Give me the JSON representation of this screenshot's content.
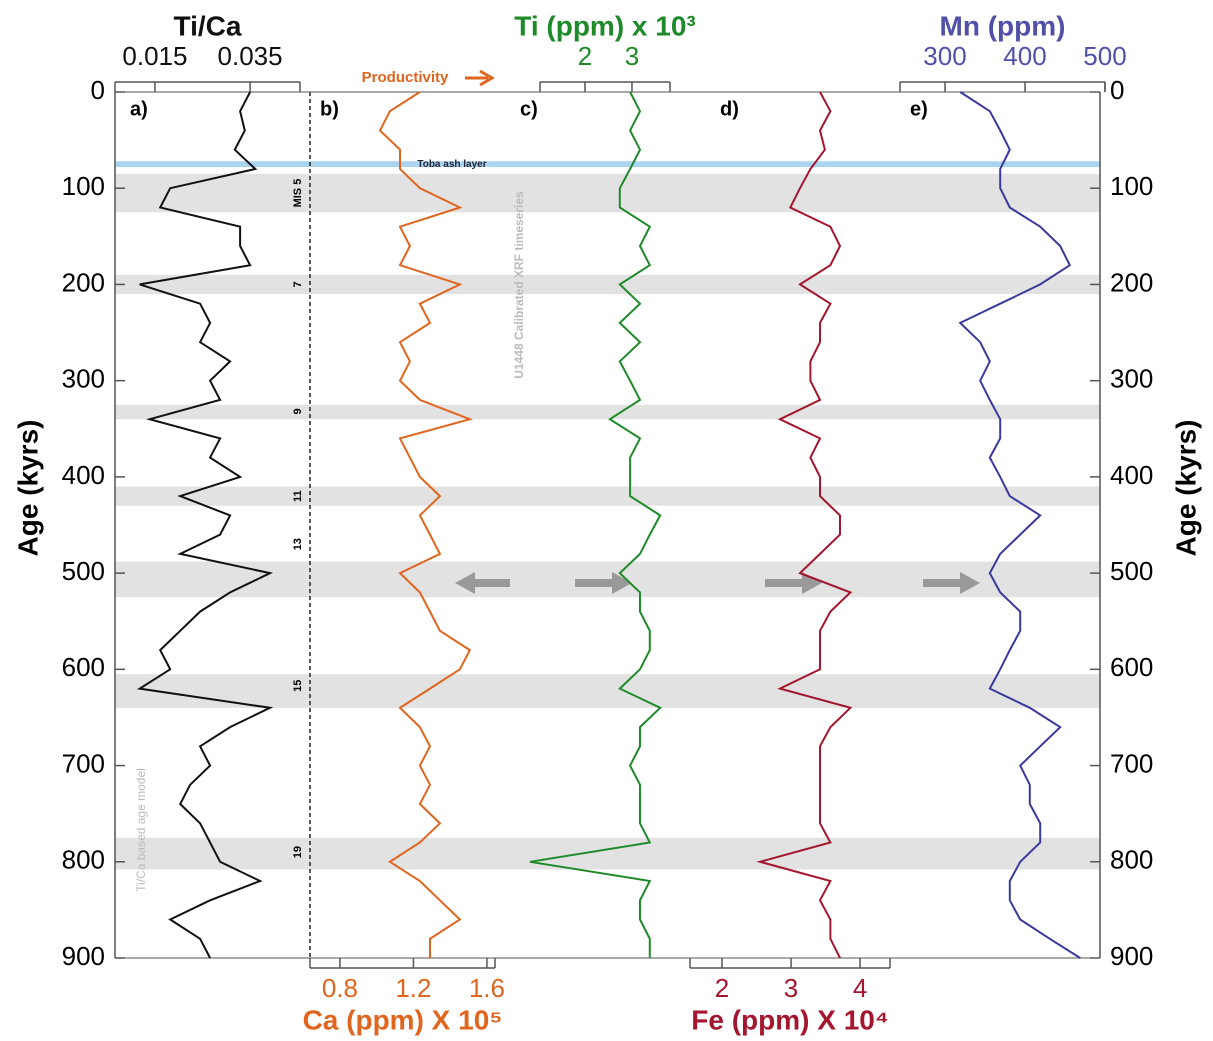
{
  "chart_data": {
    "type": "depth-profile",
    "ylabel": "Age (kyrs)",
    "ylim": [
      0,
      900
    ],
    "yticks": [
      0,
      100,
      200,
      300,
      400,
      500,
      600,
      700,
      800,
      900
    ],
    "y": [
      0,
      20,
      40,
      60,
      80,
      100,
      120,
      140,
      160,
      180,
      200,
      220,
      240,
      260,
      280,
      300,
      320,
      340,
      360,
      380,
      400,
      420,
      440,
      460,
      480,
      500,
      520,
      540,
      560,
      580,
      600,
      620,
      640,
      660,
      680,
      700,
      720,
      740,
      760,
      780,
      800,
      820,
      840,
      860,
      880,
      900
    ],
    "bands": [
      {
        "from": 85,
        "to": 125
      },
      {
        "from": 190,
        "to": 210
      },
      {
        "from": 325,
        "to": 340
      },
      {
        "from": 410,
        "to": 430
      },
      {
        "from": 488,
        "to": 525
      },
      {
        "from": 605,
        "to": 640
      },
      {
        "from": 775,
        "to": 808
      }
    ],
    "toba": {
      "label": "Toba ash layer",
      "from": 72,
      "to": 78
    },
    "mis_labels": [
      {
        "label": "MIS 5",
        "age": 105
      },
      {
        "label": "7",
        "age": 200
      },
      {
        "label": "9",
        "age": 332
      },
      {
        "label": "11",
        "age": 420
      },
      {
        "label": "13",
        "age": 470
      },
      {
        "label": "15",
        "age": 617
      },
      {
        "label": "19",
        "age": 790
      }
    ],
    "annotations": {
      "productivity": "Productivity",
      "xrf": "U1448 Calibrated XRF timeseries",
      "age_model": "Ti/Ca based age model"
    },
    "panels": [
      {
        "label": "a)",
        "name": "Ti/Ca",
        "color": "#111111",
        "title_color": "#111111",
        "axis": "top",
        "xlim": [
          0.0066,
          0.0455
        ],
        "xticks": [
          0.015,
          0.035
        ],
        "values": [
          0.035,
          0.0329,
          0.0339,
          0.0318,
          0.0361,
          0.0182,
          0.0161,
          0.0329,
          0.0329,
          0.035,
          0.0118,
          0.0245,
          0.0266,
          0.0245,
          0.0308,
          0.0266,
          0.0287,
          0.0139,
          0.0287,
          0.0266,
          0.0329,
          0.0203,
          0.0308,
          0.0287,
          0.0203,
          0.0392,
          0.0308,
          0.0245,
          0.0203,
          0.0161,
          0.0182,
          0.0118,
          0.0392,
          0.0308,
          0.0245,
          0.0266,
          0.0224,
          0.0203,
          0.0245,
          0.0266,
          0.0287,
          0.0371,
          0.0266,
          0.0182,
          0.0245,
          0.0266
        ]
      },
      {
        "label": "b)",
        "name": "Ca (ppm) X 10⁵",
        "color": "#e0651e",
        "title_color": "#e0651e",
        "axis": "bottom",
        "xlim": [
          0.637,
          1.644
        ],
        "xticks": [
          0.8,
          1.2,
          1.6
        ],
        "values": [
          1.235,
          1.072,
          1.018,
          1.127,
          1.127,
          1.235,
          1.453,
          1.127,
          1.181,
          1.127,
          1.453,
          1.235,
          1.29,
          1.127,
          1.181,
          1.127,
          1.235,
          1.507,
          1.127,
          1.181,
          1.235,
          1.344,
          1.235,
          1.29,
          1.344,
          1.127,
          1.235,
          1.29,
          1.344,
          1.507,
          1.453,
          1.29,
          1.127,
          1.235,
          1.29,
          1.235,
          1.29,
          1.235,
          1.344,
          1.235,
          1.072,
          1.235,
          1.344,
          1.453,
          1.29,
          1.29
        ]
      },
      {
        "label": "c)",
        "name": "Ti (ppm) x 10³",
        "color": "#1f8a2a",
        "title_color": "#1f8a2a",
        "axis": "top",
        "xlim": [
          1.043,
          3.809
        ],
        "xticks": [
          2,
          3
        ],
        "values": [
          2.96,
          3.17,
          2.96,
          3.17,
          2.96,
          2.74,
          2.74,
          3.38,
          3.17,
          3.38,
          2.74,
          3.17,
          2.74,
          3.17,
          2.74,
          2.96,
          3.17,
          2.53,
          3.17,
          2.96,
          2.96,
          2.96,
          3.6,
          3.38,
          3.17,
          2.74,
          3.17,
          3.17,
          3.38,
          3.38,
          3.17,
          2.74,
          3.6,
          3.17,
          3.17,
          2.96,
          3.17,
          3.17,
          3.17,
          3.38,
          0.83,
          3.38,
          3.17,
          3.17,
          3.38,
          3.38
        ]
      },
      {
        "label": "d)",
        "name": "Fe (ppm) X 10⁴",
        "color": "#a3162e",
        "title_color": "#a3162e",
        "axis": "bottom",
        "xlim": [
          1.536,
          4.434
        ],
        "xticks": [
          2,
          3,
          4
        ],
        "values": [
          3.42,
          3.57,
          3.42,
          3.49,
          3.28,
          3.13,
          2.99,
          3.57,
          3.71,
          3.57,
          3.13,
          3.57,
          3.42,
          3.42,
          3.28,
          3.28,
          3.42,
          2.84,
          3.42,
          3.28,
          3.42,
          3.42,
          3.71,
          3.71,
          3.42,
          3.13,
          3.86,
          3.57,
          3.42,
          3.42,
          3.42,
          2.84,
          3.86,
          3.57,
          3.42,
          3.42,
          3.42,
          3.42,
          3.42,
          3.57,
          2.55,
          3.57,
          3.42,
          3.57,
          3.57,
          3.71
        ]
      },
      {
        "label": "e)",
        "name": "Mn (ppm)",
        "color": "#3a3a9c",
        "title_color": "#5050a8",
        "axis": "top",
        "xlim": [
          243.75,
          500
        ],
        "xticks": [
          300,
          400,
          500
        ],
        "values": [
          319,
          356,
          369,
          381,
          369,
          369,
          381,
          419,
          444,
          456,
          419,
          369,
          319,
          344,
          356,
          344,
          356,
          369,
          369,
          356,
          369,
          381,
          419,
          394,
          369,
          356,
          369,
          394,
          394,
          381,
          369,
          356,
          406,
          444,
          419,
          394,
          406,
          406,
          419,
          419,
          394,
          381,
          381,
          394,
          431,
          469
        ]
      }
    ]
  }
}
